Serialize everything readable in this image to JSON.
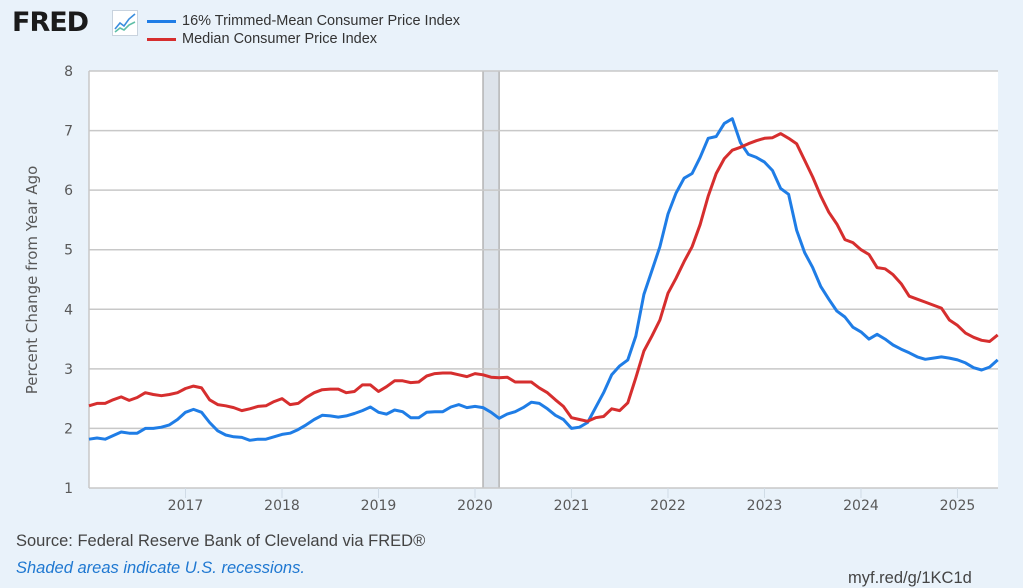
{
  "header": {
    "logo_text": "FRED",
    "logo_icon": "line-chart-icon"
  },
  "footer": {
    "source": "Source: Federal Reserve Bank of Cleveland via FRED®",
    "recession_note": "Shaded areas indicate U.S. recessions.",
    "short_url": "myf.red/g/1KC1d"
  },
  "colors": {
    "background": "#e9f2fa",
    "plot_background": "#ffffff",
    "series_trimmed_mean": "#1f7de6",
    "series_median": "#d62e2e",
    "recession_band": "#dde3ea",
    "gridline": "#c8c8c8"
  },
  "chart_data": {
    "type": "line",
    "title": "",
    "xlabel": "",
    "ylabel": "Percent Change from Year Ago",
    "ylim": [
      1,
      8
    ],
    "yticks": [
      "1",
      "2",
      "3",
      "4",
      "5",
      "6",
      "7",
      "8"
    ],
    "xlim": [
      2016.0,
      2025.42
    ],
    "xticks": [
      "2017",
      "2018",
      "2019",
      "2020",
      "2021",
      "2022",
      "2023",
      "2024",
      "2025"
    ],
    "grid": true,
    "legend_position": "top-left",
    "x_start": "2016-01",
    "x_frequency": "monthly",
    "recessions": [
      {
        "start": "2020-02",
        "end": "2020-04"
      }
    ],
    "series": [
      {
        "name": "16% Trimmed-Mean Consumer Price Index",
        "color": "#1f7de6",
        "values": [
          1.82,
          1.84,
          1.82,
          1.88,
          1.94,
          1.92,
          1.92,
          2.0,
          2.0,
          2.02,
          2.06,
          2.15,
          2.27,
          2.32,
          2.27,
          2.1,
          1.96,
          1.89,
          1.86,
          1.85,
          1.8,
          1.82,
          1.82,
          1.86,
          1.9,
          1.92,
          1.98,
          2.06,
          2.15,
          2.22,
          2.21,
          2.19,
          2.21,
          2.25,
          2.3,
          2.36,
          2.27,
          2.24,
          2.31,
          2.28,
          2.18,
          2.18,
          2.27,
          2.28,
          2.28,
          2.36,
          2.4,
          2.35,
          2.37,
          2.35,
          2.27,
          2.17,
          2.24,
          2.28,
          2.35,
          2.44,
          2.42,
          2.33,
          2.22,
          2.15,
          2.0,
          2.02,
          2.1,
          2.35,
          2.6,
          2.9,
          3.05,
          3.15,
          3.55,
          4.25,
          4.65,
          5.05,
          5.6,
          5.95,
          6.2,
          6.28,
          6.55,
          6.87,
          6.9,
          7.12,
          7.2,
          6.8,
          6.6,
          6.55,
          6.47,
          6.33,
          6.03,
          5.93,
          5.33,
          4.95,
          4.7,
          4.38,
          4.17,
          3.97,
          3.87,
          3.7,
          3.62,
          3.5,
          3.58,
          3.5,
          3.4,
          3.33,
          3.27,
          3.2,
          3.16,
          3.18,
          3.2,
          3.18,
          3.15,
          3.1,
          3.02,
          2.98,
          3.03,
          3.15
        ]
      },
      {
        "name": "Median Consumer Price Index",
        "color": "#d62e2e",
        "values": [
          2.38,
          2.42,
          2.42,
          2.48,
          2.53,
          2.47,
          2.52,
          2.6,
          2.57,
          2.55,
          2.57,
          2.6,
          2.67,
          2.71,
          2.68,
          2.48,
          2.4,
          2.38,
          2.35,
          2.3,
          2.33,
          2.37,
          2.38,
          2.45,
          2.5,
          2.4,
          2.42,
          2.52,
          2.6,
          2.65,
          2.66,
          2.66,
          2.6,
          2.62,
          2.73,
          2.73,
          2.62,
          2.7,
          2.8,
          2.8,
          2.77,
          2.78,
          2.88,
          2.92,
          2.93,
          2.93,
          2.9,
          2.87,
          2.92,
          2.9,
          2.86,
          2.85,
          2.86,
          2.78,
          2.78,
          2.78,
          2.68,
          2.6,
          2.48,
          2.37,
          2.18,
          2.15,
          2.12,
          2.18,
          2.2,
          2.33,
          2.3,
          2.43,
          2.85,
          3.3,
          3.55,
          3.82,
          4.27,
          4.52,
          4.8,
          5.05,
          5.42,
          5.9,
          6.28,
          6.53,
          6.67,
          6.72,
          6.78,
          6.83,
          6.87,
          6.88,
          6.95,
          6.87,
          6.78,
          6.5,
          6.22,
          5.9,
          5.63,
          5.43,
          5.17,
          5.12,
          5.0,
          4.92,
          4.7,
          4.68,
          4.58,
          4.43,
          4.22,
          4.17,
          4.12,
          4.07,
          4.02,
          3.82,
          3.73,
          3.6,
          3.53,
          3.48,
          3.46,
          3.57
        ]
      }
    ]
  }
}
